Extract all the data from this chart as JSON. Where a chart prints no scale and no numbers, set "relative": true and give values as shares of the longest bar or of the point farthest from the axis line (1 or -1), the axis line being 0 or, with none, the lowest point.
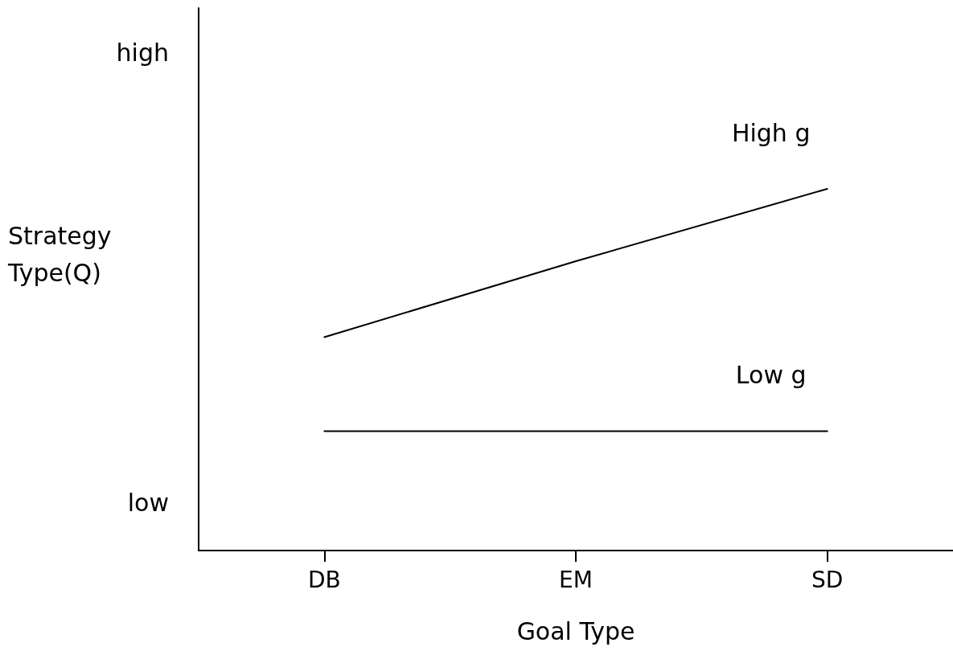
{
  "chart_data": {
    "type": "line",
    "relative": true,
    "xlabel": "Goal Type",
    "ylabel": "Strategy Type(Q)",
    "categories": [
      "DB",
      "EM",
      "SD"
    ],
    "series": [
      {
        "name": "High g",
        "color": "#000000",
        "values": [
          0.59,
          0.8,
          1
        ]
      },
      {
        "name": "Low g",
        "color": "#000000",
        "values": [
          0.33,
          0.33,
          0.33
        ]
      }
    ],
    "annotations": [
      "high",
      "low"
    ],
    "grid": false,
    "legend": false,
    "marker": "none",
    "line_style": "solid"
  }
}
